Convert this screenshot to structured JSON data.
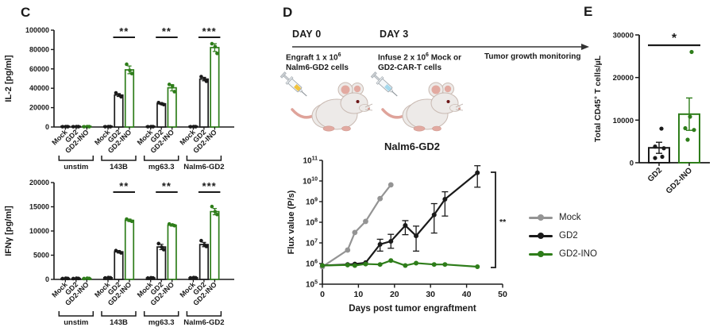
{
  "figure": {
    "panel_c_label": "C",
    "panel_d_label": "D",
    "panel_e_label": "E",
    "syringe_colors": [
      "#f0c23e",
      "#a5d8ec"
    ]
  },
  "panel_d": {
    "day0": "DAY 0",
    "day3": "DAY 3",
    "engraft_pre": "Engraft 1 x 10",
    "engraft_sup": "6",
    "engraft_line2": "Nalm6-GD2 cells",
    "infuse_pre": "Infuse 2 x 10",
    "infuse_sup": "6",
    "infuse_post": " Mock or",
    "infuse_line2": "GD2-CAR-T cells",
    "monitoring": "Tumor growth monitoring",
    "chart_title": "Nalm6-GD2"
  },
  "legend": {
    "items": [
      {
        "label": "Mock",
        "color": "#949494"
      },
      {
        "label": "GD2",
        "color": "#1a1a1a"
      },
      {
        "label": "GD2-INO",
        "color": "#2e7d1a"
      }
    ]
  },
  "colors": {
    "black": "#1a1a1a",
    "green": "#2e7d1a",
    "gray": "#949494"
  },
  "chart_data": [
    {
      "type": "bar",
      "panel": "C-top",
      "ylabel": "IL-2 [pg/ml]",
      "ylim": [
        0,
        100000
      ],
      "yticks": [
        0,
        20000,
        40000,
        60000,
        80000,
        100000
      ],
      "groups": [
        "unstim",
        "143B",
        "mg63.3",
        "Nalm6-GD2"
      ],
      "bar_labels": [
        "Mock",
        "GD2",
        "GD2-INO"
      ],
      "bar_colors": [
        "#1a1a1a",
        "#1a1a1a",
        "#2e7d1a"
      ],
      "values": [
        [
          350,
          350,
          350
        ],
        [
          350,
          33000,
          59000
        ],
        [
          350,
          24000,
          40500
        ],
        [
          350,
          49500,
          82000
        ]
      ],
      "errors": [
        [
          0,
          0,
          0
        ],
        [
          0,
          1500,
          4000
        ],
        [
          0,
          800,
          3200
        ],
        [
          0,
          1800,
          4000
        ]
      ],
      "dots": [
        [
          [
            300,
            350,
            420
          ],
          [
            300,
            350,
            420
          ],
          [
            300,
            350,
            420
          ]
        ],
        [
          [
            300,
            350,
            420
          ],
          [
            35200,
            31200,
            33000
          ],
          [
            64800,
            55200,
            58500
          ]
        ],
        [
          [
            300,
            350,
            420
          ],
          [
            25200,
            23200,
            24000
          ],
          [
            44000,
            36500,
            42500
          ]
        ],
        [
          [
            300,
            350,
            420
          ],
          [
            52000,
            47200,
            49800
          ],
          [
            86000,
            76000,
            83000
          ]
        ]
      ],
      "sig": [
        null,
        "**",
        "**",
        "***"
      ]
    },
    {
      "type": "bar",
      "panel": "C-bottom",
      "ylabel": "IFNγ [pg/ml]",
      "ylim": [
        0,
        20000
      ],
      "yticks": [
        0,
        5000,
        10000,
        15000,
        20000
      ],
      "groups": [
        "unstim",
        "143B",
        "mg63.3",
        "Nalm6-GD2"
      ],
      "bar_labels": [
        "Mock",
        "GD2",
        "GD2-INO"
      ],
      "bar_colors": [
        "#1a1a1a",
        "#1a1a1a",
        "#2e7d1a"
      ],
      "values": [
        [
          200,
          200,
          200
        ],
        [
          350,
          5700,
          12200
        ],
        [
          300,
          6700,
          11200
        ],
        [
          350,
          7200,
          14000
        ]
      ],
      "errors": [
        [
          0,
          0,
          0
        ],
        [
          0,
          250,
          250
        ],
        [
          0,
          550,
          200
        ],
        [
          0,
          450,
          650
        ]
      ],
      "dots": [
        [
          [
            170,
            200,
            240
          ],
          [
            170,
            200,
            240
          ],
          [
            170,
            200,
            240
          ]
        ],
        [
          [
            300,
            340,
            380
          ],
          [
            5950,
            5480,
            5700
          ],
          [
            12450,
            12000,
            12200
          ]
        ],
        [
          [
            270,
            300,
            340
          ],
          [
            7400,
            6150,
            6650
          ],
          [
            11450,
            11100,
            11250
          ]
        ],
        [
          [
            320,
            350,
            390
          ],
          [
            8000,
            6800,
            7150
          ],
          [
            15050,
            13400,
            14000
          ]
        ]
      ],
      "sig": [
        null,
        "**",
        "**",
        "***"
      ]
    },
    {
      "type": "line",
      "panel": "D",
      "title": "Nalm6-GD2",
      "xlabel": "Days post tumor engraftment",
      "ylabel": "Flux value (P/s)",
      "xlim": [
        0,
        50
      ],
      "xticks": [
        0,
        10,
        20,
        30,
        40,
        50
      ],
      "ylog_exponents": [
        5,
        11
      ],
      "sig": "**",
      "legend_position": "right",
      "series": [
        {
          "name": "Mock",
          "color": "#949494",
          "x": [
            0,
            7,
            9,
            12,
            16,
            19
          ],
          "y": [
            700000.0,
            4500000.0,
            32000000.0,
            110000000.0,
            1400000000.0,
            6500000000.0
          ]
        },
        {
          "name": "GD2",
          "color": "#1a1a1a",
          "x": [
            0,
            7,
            9,
            12,
            16,
            19,
            23,
            26,
            31,
            34,
            43
          ],
          "y": [
            800000.0,
            900000.0,
            950000.0,
            1100000.0,
            8500000.0,
            12000000.0,
            70000000.0,
            22000000.0,
            230000000.0,
            1300000000.0,
            25000000000.0
          ],
          "err_lo": [
            null,
            null,
            null,
            null,
            4000000.0,
            5500000.0,
            25000000.0,
            4000000.0,
            30000000.0,
            200000000.0,
            5000000000.0
          ],
          "err_hi": [
            null,
            null,
            null,
            null,
            15000000.0,
            26000000.0,
            120000000.0,
            65000000.0,
            800000000.0,
            3000000000.0,
            55000000000.0
          ]
        },
        {
          "name": "GD2-INO",
          "color": "#2e7d1a",
          "x": [
            0,
            7,
            9,
            12,
            16,
            19,
            23,
            26,
            31,
            34,
            43
          ],
          "y": [
            800000.0,
            850000.0,
            800000.0,
            950000.0,
            900000.0,
            1400000.0,
            800000.0,
            1050000.0,
            900000.0,
            900000.0,
            700000.0
          ]
        }
      ]
    },
    {
      "type": "bar",
      "panel": "E",
      "ylabel": "Total CD45+ T cells/µL",
      "ylabel_parts": [
        {
          "t": "Total CD45"
        },
        {
          "t": "+",
          "sup": true
        },
        {
          "t": " T cells/µL"
        }
      ],
      "ylim": [
        0,
        30000
      ],
      "yticks": [
        0,
        10000,
        20000,
        30000
      ],
      "categories": [
        "GD2",
        "GD2-INO"
      ],
      "bar_colors": [
        "#1a1a1a",
        "#2e7d1a"
      ],
      "values": [
        3500,
        11400
      ],
      "errors": [
        1300,
        3800
      ],
      "dots": [
        [
          8000,
          3800,
          3400,
          1100,
          1400
        ],
        [
          26000,
          10800,
          8100,
          7700,
          5400
        ]
      ],
      "sig": "*"
    }
  ]
}
